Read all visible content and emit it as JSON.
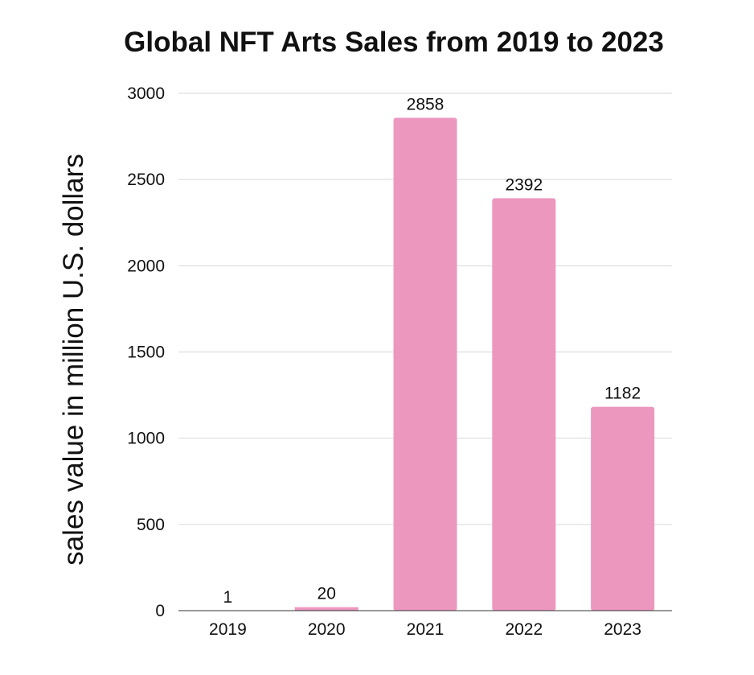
{
  "chart_data": {
    "type": "bar",
    "title": "Global NFT Arts Sales from 2019 to 2023",
    "xlabel": "",
    "ylabel": "sales value in million U.S. dollars",
    "categories": [
      "2019",
      "2020",
      "2021",
      "2022",
      "2023"
    ],
    "values": [
      1,
      20,
      2858,
      2392,
      1182
    ],
    "data_labels": [
      "1",
      "20",
      "2858",
      "2392",
      "1182"
    ],
    "ylim": [
      0,
      3000
    ],
    "yticks": [
      0,
      500,
      1000,
      1500,
      2000,
      2500,
      3000
    ],
    "ytick_labels": [
      "0",
      "500",
      "1000",
      "1500",
      "2000",
      "2500",
      "3000"
    ],
    "grid": true,
    "legend": "none",
    "colors": {
      "bar": "#ec98be",
      "grid": "#d6d6d6",
      "axis": "#333333",
      "text": "#111111"
    }
  }
}
